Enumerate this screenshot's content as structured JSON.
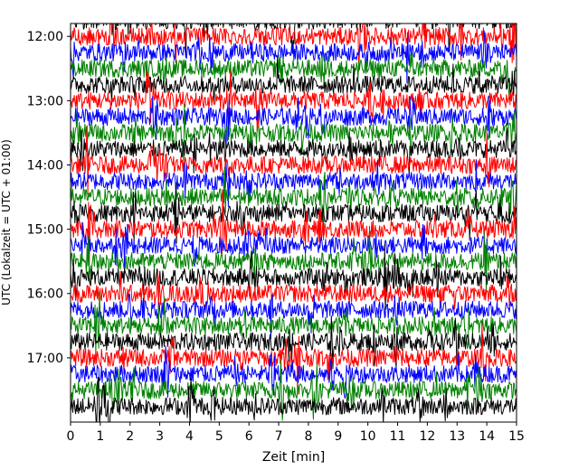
{
  "chart_data": {
    "type": "line",
    "title": "",
    "xlabel": "Zeit  [min]",
    "ylabel": "UTC (Lokalzeit = UTC + 01:00)",
    "xlim": [
      0,
      15
    ],
    "x_ticks": [
      0,
      1,
      2,
      3,
      4,
      5,
      6,
      7,
      8,
      9,
      10,
      11,
      12,
      13,
      14,
      15
    ],
    "x_tick_labels": [
      "0",
      "1",
      "2",
      "3",
      "4",
      "5",
      "6",
      "7",
      "8",
      "9",
      "10",
      "11",
      "12",
      "13",
      "14",
      "15"
    ],
    "y_tick_labels": [
      "12:00",
      "13:00",
      "14:00",
      "15:00",
      "16:00",
      "17:00"
    ],
    "y_ticks_hours": [
      12,
      13,
      14,
      15,
      16,
      17
    ],
    "ylim_hours": [
      11.8,
      18.0
    ],
    "trace_interval_minutes": 15,
    "trace_start": "11:45",
    "trace_end": "17:45",
    "color_cycle": [
      "#000000",
      "#ff0000",
      "#0000ff",
      "#008000"
    ],
    "grid": false,
    "legend": "none"
  }
}
